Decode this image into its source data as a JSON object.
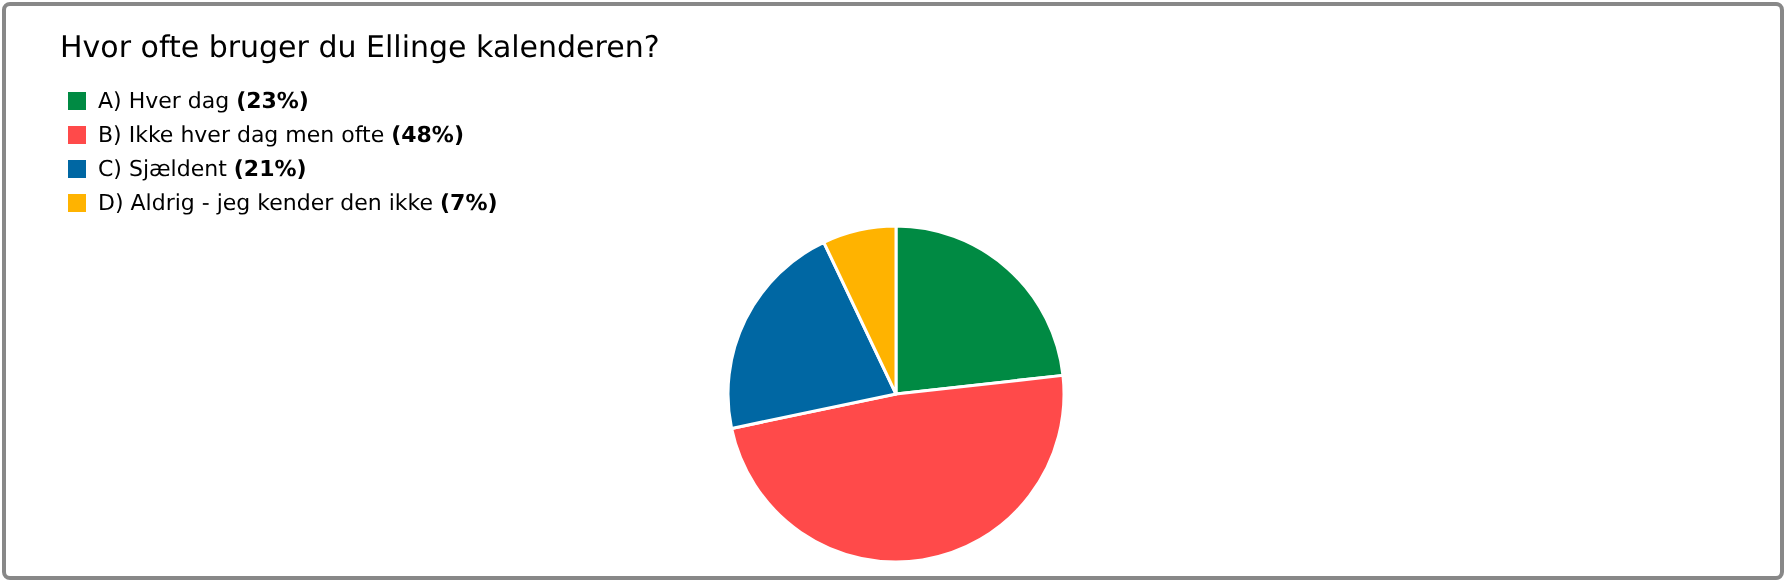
{
  "chart_data": {
    "type": "pie",
    "title": "Hvor ofte bruger du Ellinge kalenderen?",
    "categories": [
      "A) Hver dag",
      "B) Ikke hver dag men ofte",
      "C) Sjældent",
      "D) Aldrig - jeg kender den ikke"
    ],
    "values": [
      23,
      48,
      21,
      7
    ],
    "value_labels": [
      "(23%)",
      "(48%)",
      "(21%)",
      "(7%)"
    ],
    "colors": [
      "#008a43",
      "#ff4a4a",
      "#0067a3",
      "#ffb300"
    ],
    "legend": "top left"
  }
}
